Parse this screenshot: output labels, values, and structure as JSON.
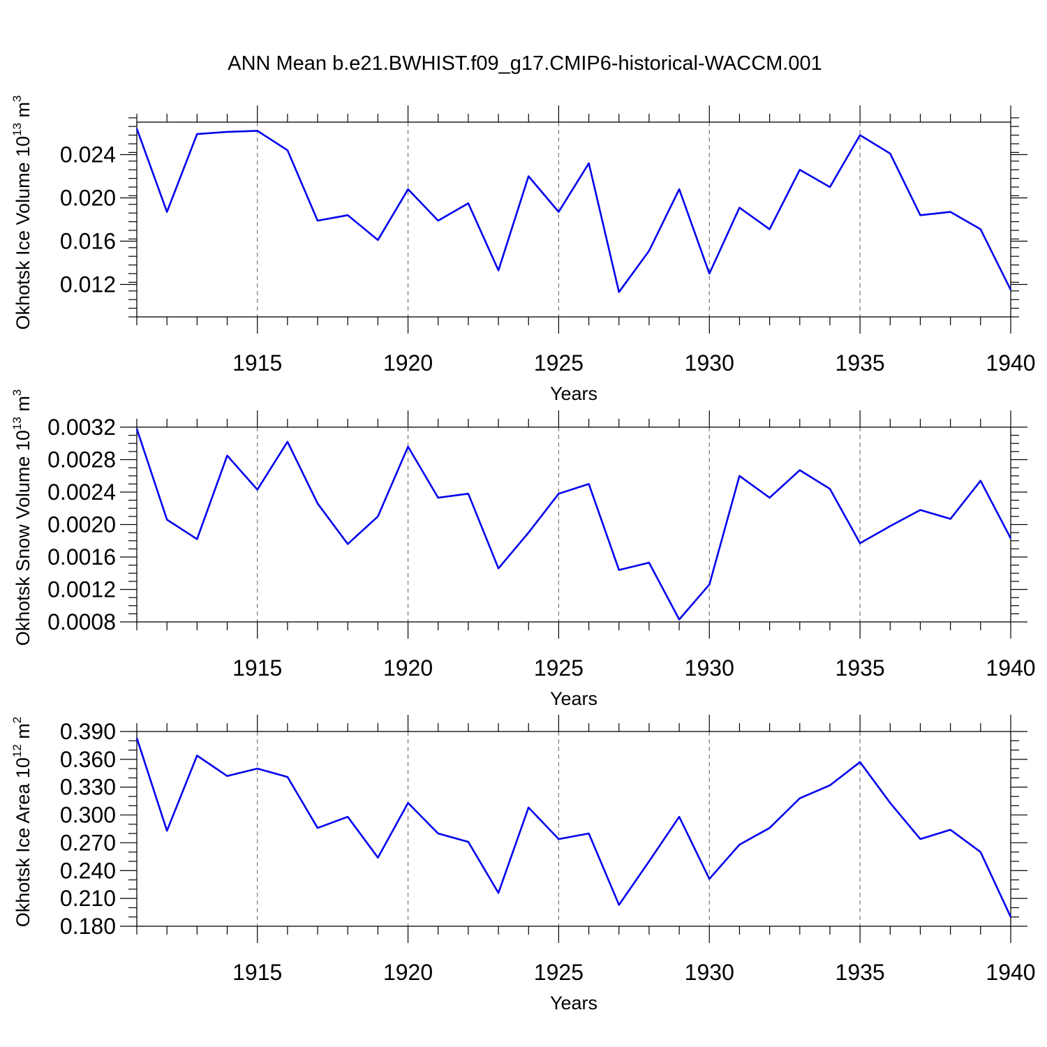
{
  "figure": {
    "title": "ANN Mean b.e21.BWHIST.f09_g17.CMIP6-historical-WACCM.001",
    "line_color": "#0000ee"
  },
  "chart_data": [
    {
      "type": "line",
      "xlabel": "Years",
      "ylabel_prefix": "Okhotsk Ice Volume 10",
      "ylabel_exp": "13",
      "ylabel_unit": " m",
      "ylabel_unit_exp": "3",
      "xlim": [
        1911,
        1940
      ],
      "ylim": [
        0.009,
        0.027
      ],
      "x_ticks": [
        1915,
        1920,
        1925,
        1930,
        1935,
        1940
      ],
      "y_ticks": [
        0.012,
        0.016,
        0.02,
        0.024
      ],
      "y_tick_labels": [
        "0.012",
        "0.016",
        "0.020",
        "0.024"
      ],
      "y_minor_step": 0.0008,
      "grid": "vertical dashed at major x ticks",
      "x": [
        1911,
        1912,
        1913,
        1914,
        1915,
        1916,
        1917,
        1918,
        1919,
        1920,
        1921,
        1922,
        1923,
        1924,
        1925,
        1926,
        1927,
        1928,
        1929,
        1930,
        1931,
        1932,
        1933,
        1934,
        1935,
        1936,
        1937,
        1938,
        1939,
        1940
      ],
      "values": [
        0.0264,
        0.0187,
        0.0259,
        0.0261,
        0.0262,
        0.0244,
        0.0179,
        0.0184,
        0.0161,
        0.0208,
        0.0179,
        0.0195,
        0.0133,
        0.022,
        0.0187,
        0.0232,
        0.0113,
        0.0151,
        0.0208,
        0.013,
        0.0191,
        0.0171,
        0.0226,
        0.021,
        0.0258,
        0.0241,
        0.0184,
        0.0187,
        0.0171,
        0.0115
      ]
    },
    {
      "type": "line",
      "xlabel": "Years",
      "ylabel_prefix": "Okhotsk Snow Volume 10",
      "ylabel_exp": "13",
      "ylabel_unit": " m",
      "ylabel_unit_exp": "3",
      "xlim": [
        1911,
        1940
      ],
      "ylim": [
        0.0008,
        0.0032
      ],
      "x_ticks": [
        1915,
        1920,
        1925,
        1930,
        1935,
        1940
      ],
      "y_ticks": [
        0.0008,
        0.0012,
        0.0016,
        0.002,
        0.0024,
        0.0028,
        0.0032
      ],
      "y_tick_labels": [
        "0.0008",
        "0.0012",
        "0.0016",
        "0.0020",
        "0.0024",
        "0.0028",
        "0.0032"
      ],
      "y_minor_step": 0.0001,
      "grid": "vertical dashed at major x ticks",
      "x": [
        1911,
        1912,
        1913,
        1914,
        1915,
        1916,
        1917,
        1918,
        1919,
        1920,
        1921,
        1922,
        1923,
        1924,
        1925,
        1926,
        1927,
        1928,
        1929,
        1930,
        1931,
        1932,
        1933,
        1934,
        1935,
        1936,
        1937,
        1938,
        1939,
        1940
      ],
      "values": [
        0.00318,
        0.00206,
        0.00182,
        0.00285,
        0.00243,
        0.00302,
        0.00226,
        0.00176,
        0.0021,
        0.00296,
        0.00233,
        0.00238,
        0.00146,
        0.0019,
        0.00238,
        0.0025,
        0.00144,
        0.00153,
        0.00083,
        0.00126,
        0.0026,
        0.00233,
        0.00267,
        0.00244,
        0.00177,
        0.00198,
        0.00218,
        0.00207,
        0.00254,
        0.00183
      ]
    },
    {
      "type": "line",
      "xlabel": "Years",
      "ylabel_prefix": "Okhotsk Ice Area 10",
      "ylabel_exp": "12",
      "ylabel_unit": " m",
      "ylabel_unit_exp": "2",
      "xlim": [
        1911,
        1940
      ],
      "ylim": [
        0.18,
        0.39
      ],
      "x_ticks": [
        1915,
        1920,
        1925,
        1930,
        1935,
        1940
      ],
      "y_ticks": [
        0.18,
        0.21,
        0.24,
        0.27,
        0.3,
        0.33,
        0.36,
        0.39
      ],
      "y_tick_labels": [
        "0.180",
        "0.210",
        "0.240",
        "0.270",
        "0.300",
        "0.330",
        "0.360",
        "0.390"
      ],
      "y_minor_step": 0.01,
      "grid": "vertical dashed at major x ticks",
      "x": [
        1911,
        1912,
        1913,
        1914,
        1915,
        1916,
        1917,
        1918,
        1919,
        1920,
        1921,
        1922,
        1923,
        1924,
        1925,
        1926,
        1927,
        1928,
        1929,
        1930,
        1931,
        1932,
        1933,
        1934,
        1935,
        1936,
        1937,
        1938,
        1939,
        1940
      ],
      "values": [
        0.383,
        0.283,
        0.364,
        0.342,
        0.35,
        0.341,
        0.286,
        0.298,
        0.254,
        0.313,
        0.28,
        0.271,
        0.216,
        0.308,
        0.274,
        0.28,
        0.203,
        0.25,
        0.298,
        0.231,
        0.268,
        0.286,
        0.318,
        0.332,
        0.357,
        0.313,
        0.274,
        0.284,
        0.26,
        0.19
      ]
    }
  ]
}
